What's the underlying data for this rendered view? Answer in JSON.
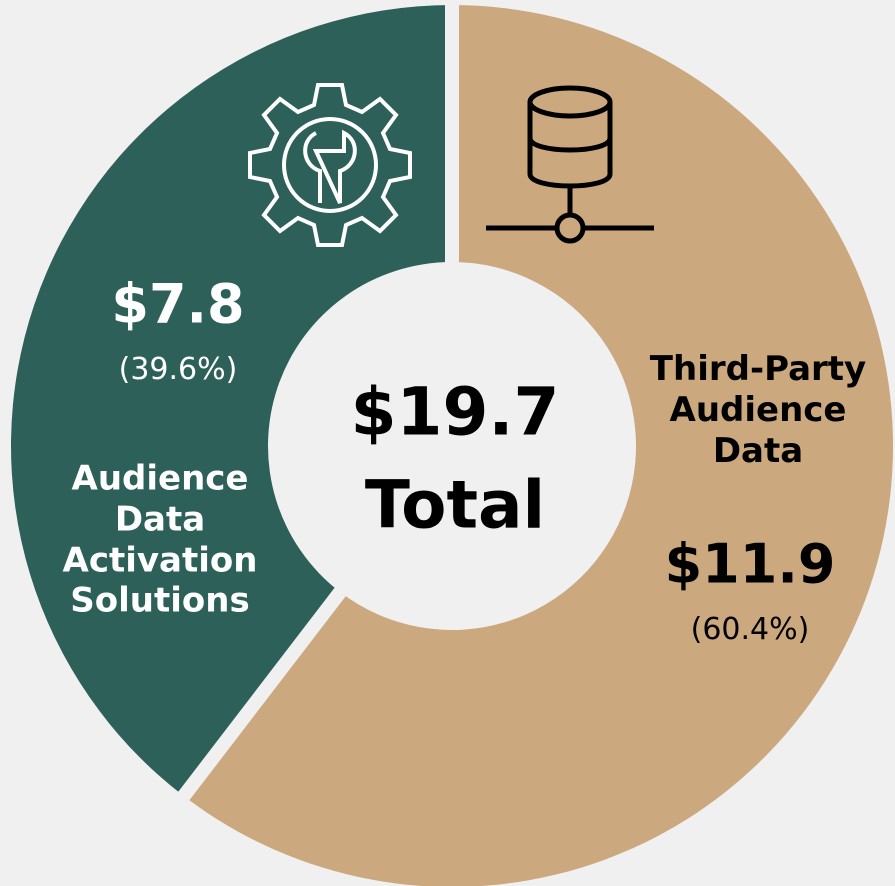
{
  "chart_data": {
    "type": "pie",
    "categories": [
      "Third-Party Audience Data",
      "Audience Data Activation Solutions"
    ],
    "values": [
      11.9,
      7.8
    ],
    "value_labels": [
      "$11.9",
      "$7.8"
    ],
    "percent_labels": [
      "(60.4%)",
      "(39.6%)"
    ],
    "colors": [
      "#cba87e",
      "#2d6059"
    ],
    "total_label": "$19.7",
    "center_text": "Total"
  }
}
